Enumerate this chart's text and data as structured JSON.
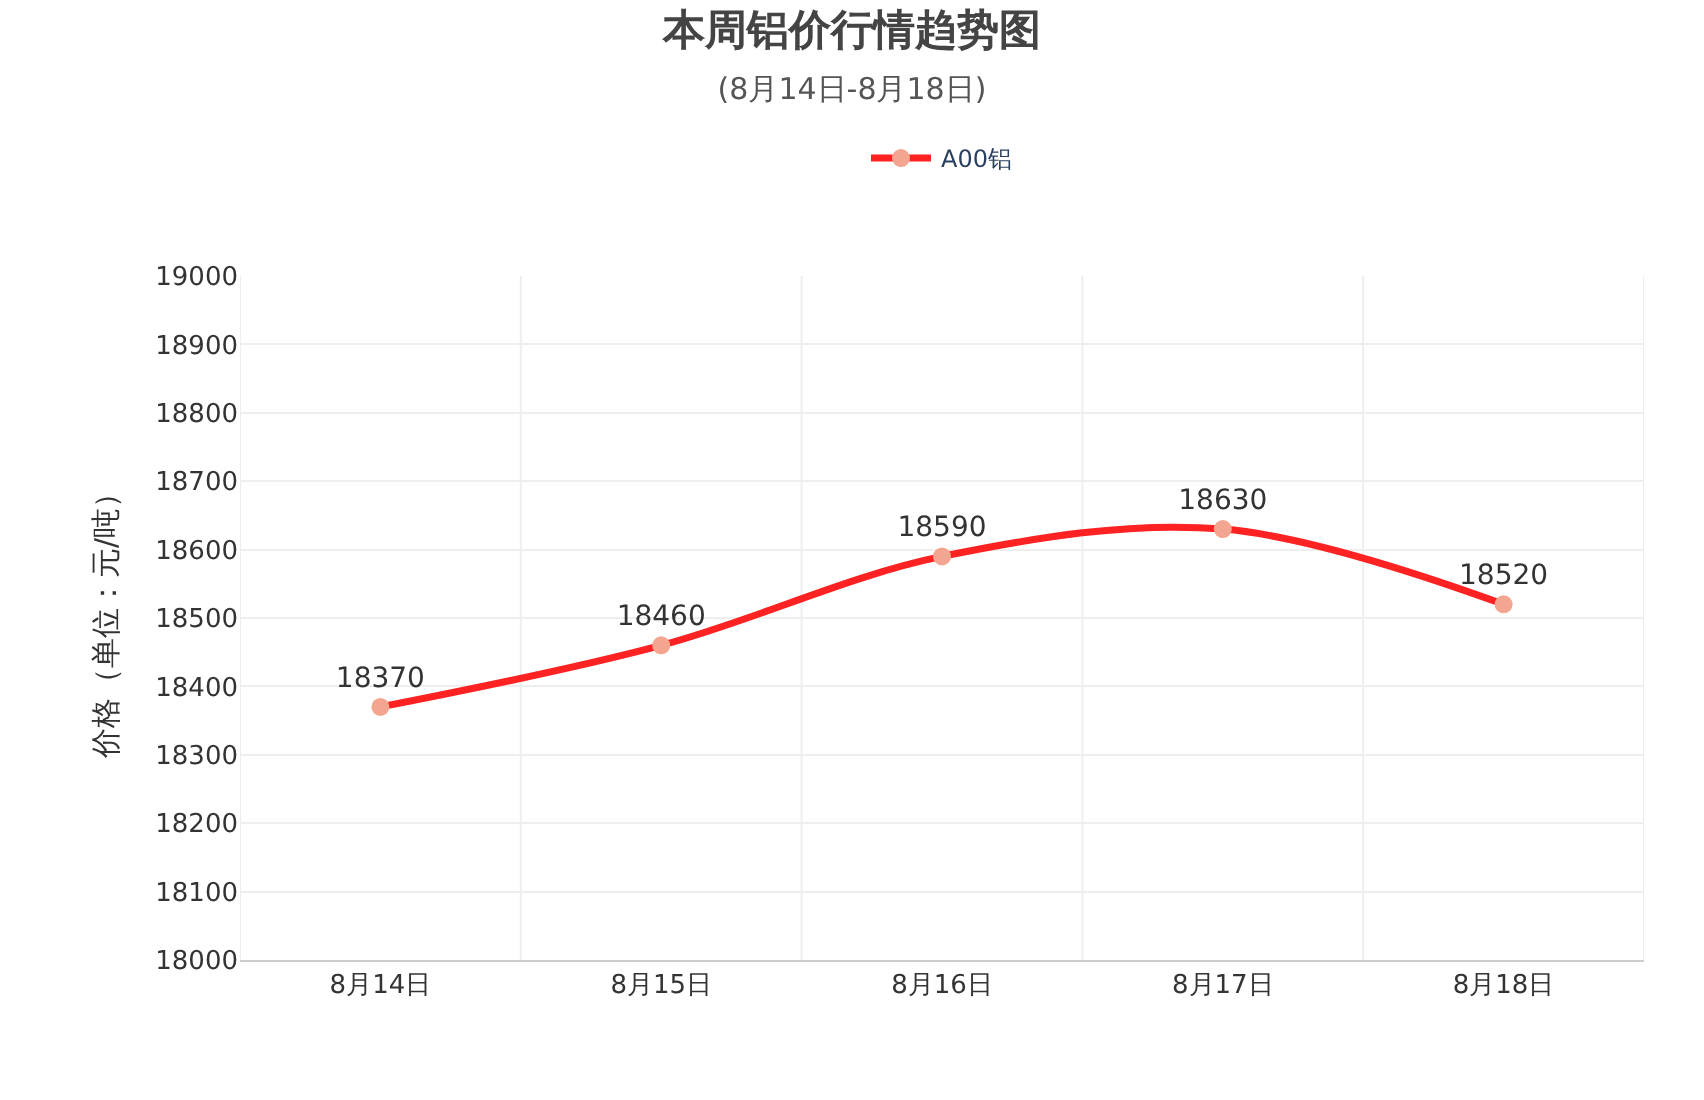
{
  "chart_data": {
    "type": "line",
    "title": "本周铝价行情趋势图",
    "subtitle": "(8月14日-8月18日)",
    "ylabel": "价格（单位：元/吨）",
    "categories": [
      "8月14日",
      "8月15日",
      "8月16日",
      "8月17日",
      "8月18日"
    ],
    "series": [
      {
        "name": "A00铝",
        "color": "#ff2222",
        "colors": [
          "#f4a58f",
          "#f4a58f",
          "#f4a58f",
          "#f4a58f",
          "#f4a58f"
        ],
        "values": [
          18370,
          18460,
          18590,
          18630,
          18520
        ]
      }
    ],
    "ylim": [
      18000,
      19000
    ],
    "yticks": [
      18000,
      18100,
      18200,
      18300,
      18400,
      18500,
      18600,
      18700,
      18800,
      18900,
      19000
    ],
    "grid": true,
    "legend": "top",
    "data_labels": true,
    "marker": "circle",
    "line_style": "solid"
  }
}
